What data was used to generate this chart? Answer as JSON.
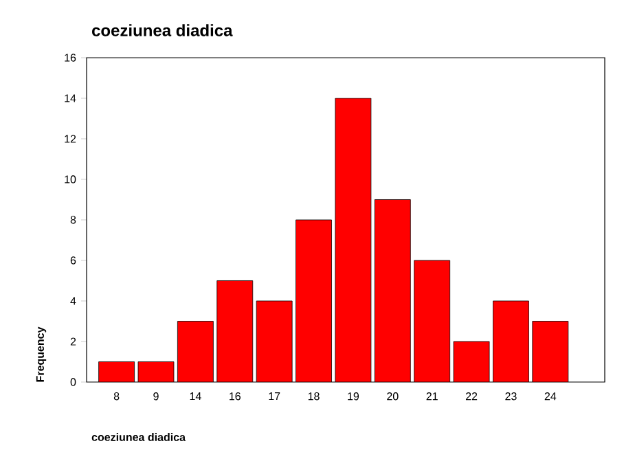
{
  "chart_data": {
    "type": "bar",
    "title": "coeziunea diadica",
    "xlabel": "coeziunea diadica",
    "ylabel": "Frequency",
    "categories": [
      "8",
      "9",
      "14",
      "16",
      "17",
      "18",
      "19",
      "20",
      "21",
      "22",
      "23",
      "24"
    ],
    "values": [
      1,
      1,
      3,
      5,
      4,
      8,
      14,
      9,
      6,
      2,
      4,
      3
    ],
    "color": "#ff0000",
    "ylim": [
      0,
      16
    ],
    "yticks": [
      0,
      2,
      4,
      6,
      8,
      10,
      12,
      14,
      16
    ]
  }
}
